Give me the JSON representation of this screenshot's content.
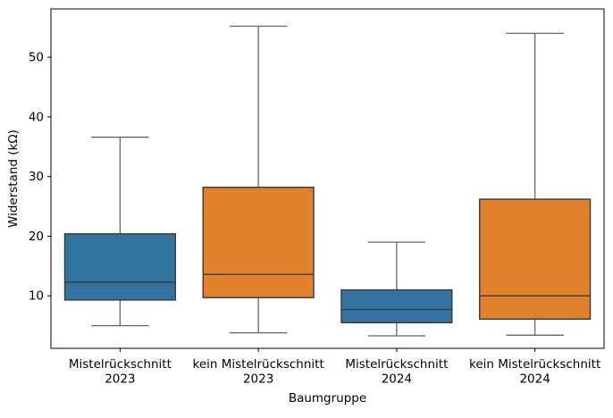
{
  "chart_data": {
    "type": "boxplot",
    "xlabel": "Baumgruppe",
    "ylabel": "Widerstand (kΩ)",
    "categories": [
      "Mistelrückschnitt 2023",
      "kein Mistelrückschnitt 2023",
      "Mistelrückschnitt 2024",
      "kein Mistelrückschnitt 2024"
    ],
    "series": [
      {
        "id": "mistelrueckschnitt-2023",
        "label": "Mistelrückschnitt 2023",
        "label_lines": [
          "Mistelrückschnitt",
          "2023"
        ],
        "whisker_low": 5.0,
        "q1": 9.3,
        "median": 12.3,
        "q3": 20.4,
        "whisker_high": 36.6,
        "color": "#3274a1"
      },
      {
        "id": "kein-mistelrueckschnitt-2023",
        "label": "kein Mistelrückschnitt 2023",
        "label_lines": [
          "kein Mistelrückschnitt",
          "2023"
        ],
        "whisker_low": 3.8,
        "q1": 9.7,
        "median": 13.6,
        "q3": 28.2,
        "whisker_high": 55.2,
        "color": "#e1812c"
      },
      {
        "id": "mistelrueckschnitt-2024",
        "label": "Mistelrückschnitt 2024",
        "label_lines": [
          "Mistelrückschnitt",
          "2024"
        ],
        "whisker_low": 3.3,
        "q1": 5.5,
        "median": 7.7,
        "q3": 11.0,
        "whisker_high": 19.0,
        "color": "#3274a1"
      },
      {
        "id": "kein-mistelrueckschnitt-2024",
        "label": "kein Mistelrückschnitt 2024",
        "label_lines": [
          "kein Mistelrückschnitt",
          "2024"
        ],
        "whisker_low": 3.4,
        "q1": 6.1,
        "median": 10.0,
        "q3": 26.2,
        "whisker_high": 54.0,
        "color": "#e1812c"
      }
    ],
    "yticks": [
      10,
      20,
      30,
      40,
      50
    ],
    "ylim": [
      1.2,
      58.1
    ],
    "grid": false,
    "legend": "none",
    "box_width_frac": 0.8,
    "colors": {
      "blue_box": "#3274a1",
      "orange_box": "#e1812c",
      "box_edge": "#3a3a3a",
      "whisker": "#666666",
      "spine": "#000000"
    }
  }
}
